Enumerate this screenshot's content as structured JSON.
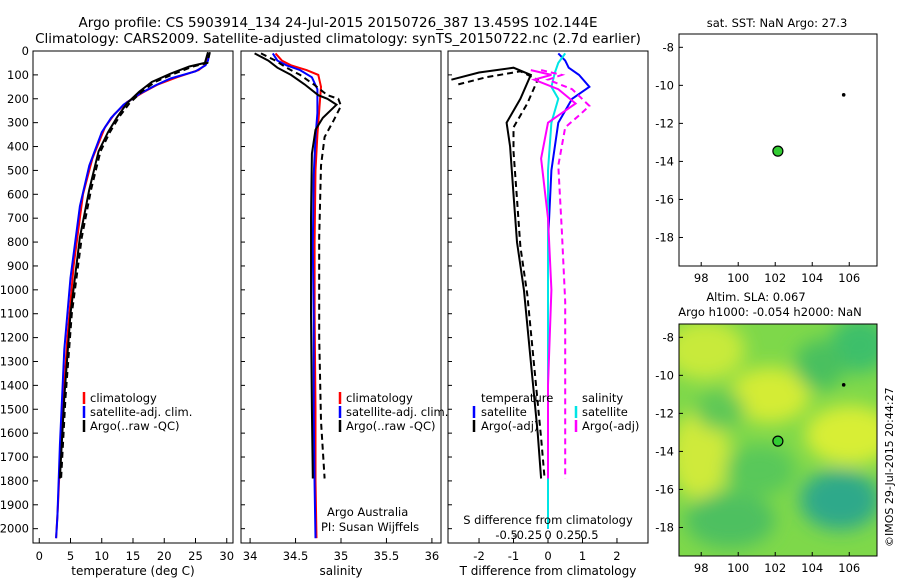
{
  "header": {
    "line1": "Argo profile: CS 5903914_134 24-Jul-2015 20150726_387 13.459S 102.144E",
    "line2": "Climatology: CARS2009. Satellite-adjusted climatology: synTS_20150722.nc (2.7d earlier)"
  },
  "colors": {
    "climatology": "#ff0000",
    "satellite": "#0000ff",
    "argo": "#000000",
    "cyan": "#00e5e5",
    "magenta": "#ff00ff",
    "marker": "#33cc33"
  },
  "chart_data": [
    {
      "type": "line",
      "id": "temperature",
      "xlabel": "temperature (deg C)",
      "ylabel": "",
      "xlim": [
        -1,
        31
      ],
      "ylim": [
        2060,
        0
      ],
      "y_reversed": true,
      "xticks": [
        0,
        5,
        10,
        15,
        20,
        25,
        30
      ],
      "yticks": [
        0,
        100,
        200,
        300,
        400,
        500,
        600,
        700,
        800,
        900,
        1000,
        1100,
        1200,
        1300,
        1400,
        1500,
        1600,
        1700,
        1800,
        1900,
        2000
      ],
      "legend": {
        "location": "lower-middle",
        "entries": [
          "climatology",
          "satellite-adj. clim.",
          "Argo(..raw -QC)"
        ]
      },
      "series": [
        {
          "name": "climatology",
          "color": "#ff0000",
          "dash": false,
          "x": [
            27.0,
            26.8,
            26.5,
            25.5,
            22.0,
            19.0,
            16.5,
            14.0,
            12.0,
            10.5,
            8.5,
            7.0,
            5.5,
            4.5,
            3.5,
            3.0,
            2.7
          ],
          "y": [
            10,
            40,
            60,
            80,
            110,
            140,
            175,
            215,
            265,
            320,
            450,
            600,
            900,
            1200,
            1600,
            1900,
            2040
          ]
        },
        {
          "name": "satellite-adj. clim.",
          "color": "#0000ff",
          "dash": false,
          "x": [
            27.2,
            27.0,
            26.6,
            25.0,
            21.0,
            18.5,
            16.0,
            13.5,
            11.5,
            10.0,
            8.0,
            6.5,
            5.0,
            4.0,
            3.3,
            2.9,
            2.7
          ],
          "y": [
            10,
            40,
            60,
            85,
            115,
            145,
            180,
            225,
            280,
            340,
            480,
            650,
            950,
            1250,
            1650,
            1950,
            2040
          ]
        },
        {
          "name": "Argo(..raw -QC)",
          "color": "#000000",
          "dash": false,
          "x": [
            27.0,
            26.5,
            24.0,
            21.0,
            18.0,
            16.0,
            14.0,
            12.5,
            11.0,
            9.5,
            8.0,
            6.5,
            5.0,
            4.0,
            3.3
          ],
          "y": [
            5,
            50,
            65,
            95,
            130,
            170,
            220,
            275,
            340,
            420,
            580,
            780,
            1100,
            1450,
            1790
          ]
        },
        {
          "name": "Argo(..raw -QC)",
          "color": "#000000",
          "dash": true,
          "x": [
            27.3,
            26.9,
            24.6,
            21.6,
            18.5,
            16.4,
            14.4,
            12.8,
            11.3,
            9.8,
            8.3,
            6.8,
            5.2,
            4.2,
            3.5
          ],
          "y": [
            5,
            50,
            65,
            95,
            130,
            170,
            220,
            275,
            340,
            420,
            580,
            780,
            1100,
            1450,
            1790
          ]
        }
      ]
    },
    {
      "type": "line",
      "id": "salinity",
      "xlabel": "salinity",
      "ylabel": "",
      "xlim": [
        33.9,
        36.1
      ],
      "ylim": [
        2060,
        0
      ],
      "y_reversed": true,
      "xticks": [
        34,
        34.5,
        35,
        35.5,
        36
      ],
      "legend": {
        "location": "lower-right",
        "entries": [
          "climatology",
          "satellite-adj. clim.",
          "Argo(..raw -QC)"
        ]
      },
      "annotations": [
        "Argo Australia",
        "PI: Susan Wijffels"
      ],
      "series": [
        {
          "name": "climatology",
          "color": "#ff0000",
          "dash": false,
          "x": [
            34.28,
            34.35,
            34.45,
            34.62,
            34.75,
            34.78,
            34.76,
            34.74,
            34.72,
            34.71,
            34.71,
            34.72,
            34.72,
            34.73
          ],
          "y": [
            10,
            40,
            60,
            80,
            100,
            150,
            250,
            350,
            500,
            800,
            1100,
            1500,
            1800,
            2040
          ]
        },
        {
          "name": "satellite-adj. clim.",
          "color": "#0000ff",
          "dash": false,
          "x": [
            34.25,
            34.3,
            34.4,
            34.55,
            34.68,
            34.74,
            34.74,
            34.72,
            34.7,
            34.69,
            34.7,
            34.7,
            34.71,
            34.72
          ],
          "y": [
            10,
            40,
            60,
            80,
            110,
            160,
            260,
            360,
            520,
            820,
            1120,
            1520,
            1820,
            2040
          ]
        },
        {
          "name": "Argo(..raw -QC)",
          "color": "#000000",
          "dash": false,
          "x": [
            34.05,
            34.2,
            34.3,
            34.45,
            34.6,
            34.75,
            34.85,
            34.95,
            34.8,
            34.72,
            34.68,
            34.67,
            34.67,
            34.68,
            34.69
          ],
          "y": [
            10,
            40,
            70,
            100,
            140,
            185,
            200,
            225,
            280,
            330,
            430,
            700,
            1100,
            1500,
            1790
          ]
        },
        {
          "name": "Argo(..raw -QC)",
          "color": "#000000",
          "dash": true,
          "x": [
            34.12,
            34.28,
            34.4,
            34.55,
            34.7,
            34.85,
            34.97,
            35.0,
            34.92,
            34.82,
            34.78,
            34.76,
            34.76,
            34.78,
            34.82
          ],
          "y": [
            10,
            40,
            70,
            100,
            140,
            185,
            200,
            230,
            290,
            360,
            480,
            780,
            1200,
            1550,
            1790
          ]
        }
      ]
    },
    {
      "type": "line",
      "id": "difference",
      "xlabel": "T difference from climatology",
      "x2label": "S difference from climatology",
      "xlim": [
        -2.9,
        2.9
      ],
      "ylim": [
        2060,
        0
      ],
      "y_reversed": true,
      "xticks": [
        -2,
        -1,
        0,
        1,
        2
      ],
      "x2ticks": [
        "-0.5",
        "-0.25",
        "0",
        "0.25",
        "0.5"
      ],
      "legend": {
        "location": "lower",
        "groups": [
          {
            "title": "temperature",
            "entries": [
              "satellite",
              "Argo(-adj)"
            ]
          },
          {
            "title": "salinity",
            "entries": [
              "satellite",
              "Argo(-adj)"
            ]
          }
        ]
      },
      "series": [
        {
          "name": "temperature satellite",
          "color": "#0000ff",
          "dash": false,
          "x": [
            0.3,
            0.5,
            0.6,
            0.9,
            1.2,
            0.7,
            0.3,
            0.1,
            0.0,
            0.0,
            0.0,
            0.0
          ],
          "y": [
            10,
            40,
            70,
            100,
            150,
            200,
            300,
            500,
            800,
            1200,
            1600,
            2000
          ]
        },
        {
          "name": "temperature Argo(-adj)",
          "color": "#000000",
          "dash": false,
          "x": [
            -2.8,
            -2.0,
            -1.0,
            -0.5,
            -0.8,
            -1.2,
            -1.1,
            -1.0,
            -0.9,
            -0.7,
            -0.5,
            -0.3,
            -0.2
          ],
          "y": [
            120,
            90,
            70,
            100,
            200,
            300,
            400,
            600,
            800,
            1000,
            1300,
            1600,
            1790
          ]
        },
        {
          "name": "temperature Argo(-adj)",
          "color": "#000000",
          "dash": true,
          "x": [
            -2.6,
            -1.8,
            -0.8,
            -0.3,
            -0.6,
            -1.0,
            -1.0,
            -0.9,
            -0.8,
            -0.6,
            -0.4,
            -0.2,
            -0.1
          ],
          "y": [
            140,
            110,
            85,
            120,
            220,
            320,
            420,
            620,
            820,
            1020,
            1320,
            1620,
            1790
          ]
        },
        {
          "name": "salinity satellite",
          "color": "#00e5e5",
          "dash": false,
          "x": [
            0.5,
            0.3,
            0.2,
            0.1,
            0.3,
            0.1,
            0.0,
            0.0,
            0.0,
            0.0,
            0.0
          ],
          "y": [
            10,
            50,
            90,
            150,
            200,
            300,
            500,
            800,
            1200,
            1600,
            2000
          ]
        },
        {
          "name": "salinity Argo(-adj)",
          "color": "#ff00ff",
          "dash": false,
          "x": [
            -0.5,
            0.1,
            -0.4,
            0.3,
            0.8,
            0.4,
            0.0,
            -0.2,
            0.0,
            0.1,
            0.0,
            0.0
          ],
          "y": [
            80,
            100,
            120,
            160,
            220,
            260,
            300,
            450,
            700,
            1000,
            1400,
            1790
          ]
        },
        {
          "name": "salinity Argo(-adj)",
          "color": "#ff00ff",
          "dash": true,
          "x": [
            -0.2,
            0.4,
            0.0,
            0.7,
            1.2,
            0.9,
            0.5,
            0.3,
            0.4,
            0.5,
            0.5,
            0.5
          ],
          "y": [
            80,
            100,
            120,
            160,
            230,
            270,
            320,
            480,
            750,
            1050,
            1450,
            1790
          ]
        }
      ]
    },
    {
      "type": "scatter",
      "id": "sst-map",
      "title": "sat. SST: NaN Argo: 27.3",
      "xlim": [
        96.8,
        107.5
      ],
      "ylim": [
        -19.5,
        -7.3
      ],
      "xticks": [
        98,
        100,
        102,
        104,
        106
      ],
      "yticks": [
        -8,
        -10,
        -12,
        -14,
        -16,
        -18
      ],
      "points": [
        {
          "x": 102.144,
          "y": -13.459,
          "color": "#33cc33"
        }
      ],
      "minor_marks": [
        {
          "x": 105.7,
          "y": -10.5
        }
      ]
    },
    {
      "type": "heatmap",
      "id": "sla-map",
      "title_line1": "Altim. SLA: 0.067",
      "title_line2": "Argo h1000: -0.054 h2000: NaN",
      "xlim": [
        96.8,
        107.5
      ],
      "ylim": [
        -19.5,
        -7.3
      ],
      "xticks": [
        98,
        100,
        102,
        104,
        106
      ],
      "yticks": [
        -8,
        -10,
        -12,
        -14,
        -16,
        -18
      ],
      "points": [
        {
          "x": 102.144,
          "y": -13.459,
          "color": "#33cc33"
        }
      ],
      "minor_marks": [
        {
          "x": 105.7,
          "y": -10.5
        }
      ]
    }
  ],
  "watermark": "©IMOS 29-Jul-2015 20:44:27"
}
